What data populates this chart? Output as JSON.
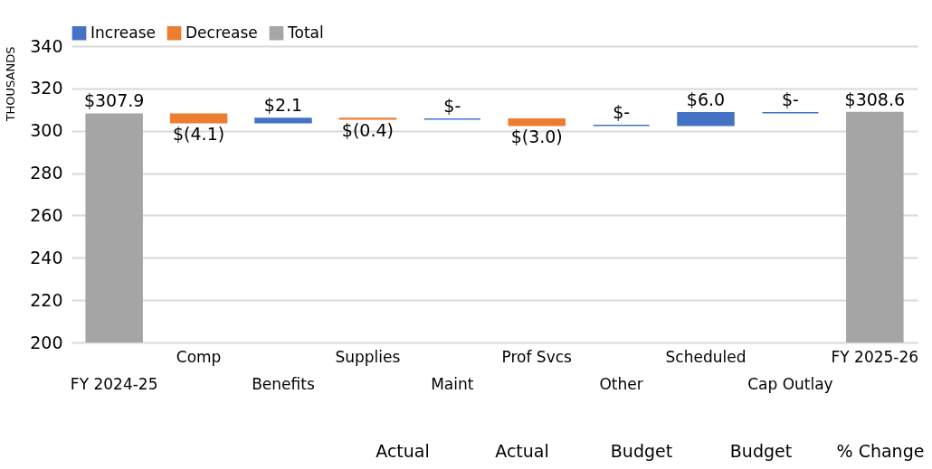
{
  "chart_data": {
    "type": "bar",
    "ylabel": "THOUSANDS",
    "categories": [
      "FY 2024-25",
      "Comp",
      "Benefits",
      "Supplies",
      "Maint",
      "Prof Svcs",
      "Other",
      "Scheduled",
      "Cap Outlay",
      "FY 2025-26"
    ],
    "series": [
      {
        "name": "Increase",
        "color": "#4472c4",
        "values": [
          null,
          null,
          2.1,
          null,
          0,
          null,
          0,
          6.0,
          0,
          null
        ],
        "base": [
          null,
          null,
          303.8,
          null,
          305.5,
          null,
          302.5,
          302.5,
          308.5,
          null
        ],
        "value_labels": [
          null,
          null,
          "$2.1",
          null,
          "$-",
          null,
          "$-",
          "$6.0",
          "$-",
          null
        ]
      },
      {
        "name": "Decrease",
        "color": "#ed7d31",
        "values": [
          null,
          -4.1,
          null,
          -0.4,
          null,
          -3.0,
          null,
          null,
          null,
          null
        ],
        "base": [
          null,
          307.9,
          null,
          305.9,
          null,
          305.5,
          null,
          null,
          null,
          null
        ],
        "value_labels": [
          null,
          "$(4.1)",
          null,
          "$(0.4)",
          null,
          "$(3.0)",
          null,
          null,
          null,
          null
        ]
      },
      {
        "name": "Total",
        "color": "#a5a5a5",
        "values": [
          307.9,
          null,
          null,
          null,
          null,
          null,
          null,
          null,
          null,
          308.6
        ],
        "value_labels": [
          "$307.9",
          null,
          null,
          null,
          null,
          null,
          null,
          null,
          null,
          "$308.6"
        ]
      }
    ],
    "ylim": [
      200,
      340
    ],
    "yticks": [
      200,
      220,
      240,
      260,
      280,
      300,
      320,
      340
    ],
    "grid": "y",
    "legend": "top",
    "annotations": [
      "Actual",
      "Actual",
      "Budget",
      "Budget",
      "% Change"
    ]
  }
}
